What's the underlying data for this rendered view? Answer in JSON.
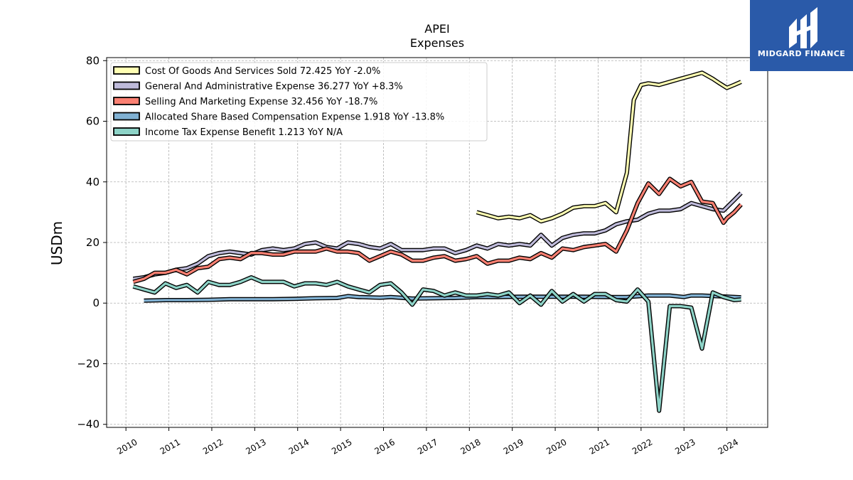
{
  "chart_data": {
    "type": "line",
    "title": "APEI",
    "subtitle": "Expenses",
    "ylabel": "USDm",
    "xlabel": "",
    "ylim": [
      -41,
      81
    ],
    "xlim": [
      2009.55,
      2024.95
    ],
    "yticks": [
      80,
      60,
      40,
      20,
      0,
      -20,
      -40
    ],
    "ytick_labels": [
      "80",
      "60",
      "40",
      "20",
      "0",
      "−20",
      "−40"
    ],
    "xticks": [
      2010,
      2011,
      2012,
      2013,
      2014,
      2015,
      2016,
      2017,
      2018,
      2019,
      2020,
      2021,
      2022,
      2023,
      2024
    ],
    "grid": true,
    "legend_position": "top-left",
    "series": [
      {
        "name": "Cost Of Goods And Services Sold  72.425 YoY -2.0%",
        "color": "#ffffb3",
        "x": [
          2018.17,
          2018.42,
          2018.67,
          2018.92,
          2019.17,
          2019.42,
          2019.67,
          2019.92,
          2020.17,
          2020.42,
          2020.67,
          2020.92,
          2021.17,
          2021.42,
          2021.67,
          2021.83,
          2022.0,
          2022.17,
          2022.42,
          2022.67,
          2022.92,
          2023.17,
          2023.42,
          2023.67,
          2023.83,
          2024.0,
          2024.17,
          2024.33
        ],
        "y": [
          30.0,
          29.0,
          28.0,
          28.5,
          28.0,
          29.0,
          27.0,
          28.0,
          29.5,
          31.5,
          32.0,
          32.0,
          33.0,
          30.0,
          43.0,
          67.0,
          72.0,
          72.5,
          72.0,
          73.0,
          74.0,
          75.0,
          76.0,
          74.0,
          72.5,
          71.0,
          72.0,
          73.0
        ]
      },
      {
        "name": "General And Administrative Expense  36.277 YoY +8.3%",
        "color": "#bebada",
        "x": [
          2010.17,
          2010.42,
          2010.67,
          2010.92,
          2011.17,
          2011.42,
          2011.67,
          2011.92,
          2012.17,
          2012.42,
          2012.67,
          2012.92,
          2013.17,
          2013.42,
          2013.67,
          2013.92,
          2014.17,
          2014.42,
          2014.67,
          2014.92,
          2015.17,
          2015.42,
          2015.67,
          2015.92,
          2016.17,
          2016.42,
          2016.67,
          2016.92,
          2017.17,
          2017.42,
          2017.67,
          2017.92,
          2018.17,
          2018.42,
          2018.67,
          2018.92,
          2019.17,
          2019.42,
          2019.67,
          2019.92,
          2020.17,
          2020.42,
          2020.67,
          2020.92,
          2021.17,
          2021.42,
          2021.67,
          2021.92,
          2022.17,
          2022.42,
          2022.67,
          2022.92,
          2023.17,
          2023.42,
          2023.67,
          2023.92,
          2024.17,
          2024.33
        ],
        "y": [
          8.0,
          8.5,
          9.5,
          10.0,
          11.0,
          11.5,
          13.0,
          15.5,
          16.5,
          17.0,
          16.5,
          16.0,
          17.5,
          18.0,
          17.5,
          18.0,
          19.5,
          20.0,
          18.5,
          18.0,
          20.0,
          19.5,
          18.5,
          18.0,
          19.5,
          17.5,
          17.5,
          17.5,
          18.0,
          18.0,
          16.5,
          17.5,
          19.0,
          18.0,
          19.5,
          19.0,
          19.5,
          19.0,
          22.5,
          19.0,
          21.5,
          22.5,
          23.0,
          23.0,
          24.0,
          26.0,
          27.0,
          27.5,
          29.5,
          30.5,
          30.5,
          31.0,
          33.0,
          32.0,
          31.0,
          30.5,
          34.0,
          36.3
        ]
      },
      {
        "name": "Selling And Marketing Expense  32.456 YoY -18.7%",
        "color": "#fb8072",
        "x": [
          2010.17,
          2010.42,
          2010.67,
          2010.92,
          2011.17,
          2011.42,
          2011.67,
          2011.92,
          2012.17,
          2012.42,
          2012.67,
          2012.92,
          2013.17,
          2013.42,
          2013.67,
          2013.92,
          2014.17,
          2014.42,
          2014.67,
          2014.92,
          2015.17,
          2015.42,
          2015.67,
          2015.92,
          2016.17,
          2016.42,
          2016.67,
          2016.92,
          2017.17,
          2017.42,
          2017.67,
          2017.92,
          2018.17,
          2018.42,
          2018.67,
          2018.92,
          2019.17,
          2019.42,
          2019.67,
          2019.92,
          2020.17,
          2020.42,
          2020.67,
          2020.92,
          2021.17,
          2021.42,
          2021.67,
          2021.92,
          2022.17,
          2022.42,
          2022.67,
          2022.92,
          2023.17,
          2023.42,
          2023.67,
          2023.92,
          2024.0,
          2024.17,
          2024.33
        ],
        "y": [
          7.0,
          8.0,
          10.0,
          10.0,
          11.0,
          9.5,
          11.5,
          12.0,
          14.5,
          15.0,
          14.5,
          16.5,
          16.5,
          16.0,
          16.0,
          17.0,
          17.0,
          17.0,
          18.0,
          17.0,
          17.0,
          16.5,
          14.0,
          15.5,
          17.0,
          16.0,
          14.0,
          14.0,
          15.0,
          15.5,
          14.0,
          14.5,
          15.5,
          13.0,
          14.0,
          14.0,
          15.0,
          14.5,
          16.5,
          15.0,
          18.0,
          17.5,
          18.5,
          19.0,
          19.5,
          17.0,
          24.0,
          33.0,
          39.5,
          36.0,
          41.0,
          38.5,
          40.0,
          33.5,
          33.0,
          26.5,
          28.0,
          30.0,
          32.5
        ]
      },
      {
        "name": "Allocated Share Based Compensation Expense  1.918 YoY -13.8%",
        "color": "#80b1d3",
        "x": [
          2010.42,
          2010.92,
          2011.42,
          2011.92,
          2012.42,
          2012.92,
          2013.42,
          2013.92,
          2014.42,
          2014.92,
          2015.17,
          2015.42,
          2015.92,
          2016.17,
          2016.67,
          2017.17,
          2017.67,
          2018.17,
          2018.67,
          2019.17,
          2019.67,
          2020.17,
          2020.67,
          2021.17,
          2021.67,
          2022.17,
          2022.67,
          2023.0,
          2023.17,
          2023.42,
          2023.92,
          2024.33
        ],
        "y": [
          0.8,
          1.0,
          1.0,
          1.1,
          1.3,
          1.3,
          1.3,
          1.4,
          1.6,
          1.7,
          2.3,
          2.0,
          1.8,
          2.0,
          1.5,
          1.6,
          1.7,
          2.0,
          2.0,
          2.1,
          2.1,
          2.1,
          2.1,
          2.0,
          2.0,
          2.5,
          2.5,
          2.0,
          2.5,
          2.5,
          2.2,
          1.9
        ]
      },
      {
        "name": "Income Tax Expense Benefit  1.213 YoY N/A",
        "color": "#8dd3c7",
        "x": [
          2010.17,
          2010.42,
          2010.67,
          2010.92,
          2011.17,
          2011.42,
          2011.67,
          2011.92,
          2012.17,
          2012.42,
          2012.67,
          2012.92,
          2013.17,
          2013.42,
          2013.67,
          2013.92,
          2014.17,
          2014.42,
          2014.67,
          2014.92,
          2015.17,
          2015.42,
          2015.67,
          2015.92,
          2016.17,
          2016.42,
          2016.67,
          2016.92,
          2017.17,
          2017.42,
          2017.67,
          2017.92,
          2018.17,
          2018.42,
          2018.67,
          2018.92,
          2019.17,
          2019.42,
          2019.67,
          2019.92,
          2020.17,
          2020.42,
          2020.67,
          2020.92,
          2021.17,
          2021.42,
          2021.67,
          2021.92,
          2022.17,
          2022.42,
          2022.67,
          2022.92,
          2023.17,
          2023.42,
          2023.67,
          2023.92,
          2024.17,
          2024.33
        ],
        "y": [
          5.5,
          4.5,
          3.5,
          6.5,
          5.0,
          6.0,
          3.5,
          7.0,
          6.0,
          6.0,
          7.0,
          8.5,
          7.0,
          7.0,
          7.0,
          5.5,
          6.5,
          6.5,
          6.0,
          7.0,
          5.5,
          4.5,
          3.5,
          6.0,
          6.5,
          3.5,
          -0.5,
          4.5,
          4.0,
          2.5,
          3.5,
          2.5,
          2.5,
          3.0,
          2.5,
          3.5,
          0.0,
          2.5,
          -0.5,
          4.0,
          0.5,
          3.0,
          0.5,
          3.0,
          3.0,
          1.0,
          0.5,
          4.5,
          0.5,
          -35.5,
          -1.0,
          -1.0,
          -1.5,
          -15.0,
          3.5,
          2.0,
          1.0,
          1.2
        ]
      }
    ]
  },
  "logo": {
    "text": "MIDGARD FINANCE"
  }
}
